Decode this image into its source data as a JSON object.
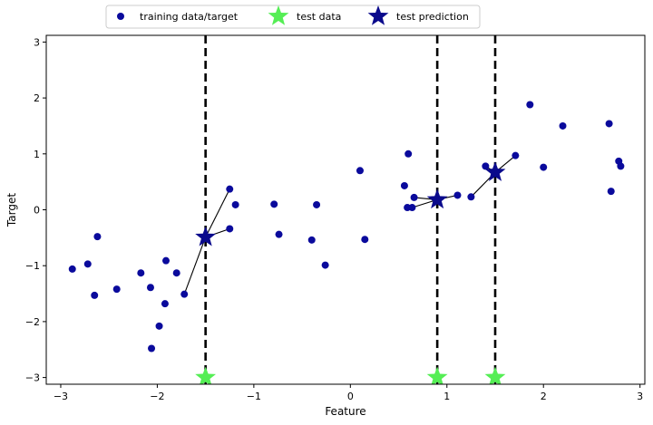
{
  "chart_data": {
    "type": "scatter",
    "xlabel": "Feature",
    "ylabel": "Target",
    "xlim": [
      -3.15,
      3.05
    ],
    "ylim": [
      -3.12,
      3.12
    ],
    "xticks": [
      -3,
      -2,
      -1,
      0,
      1,
      2,
      3
    ],
    "yticks": [
      -3,
      -2,
      -1,
      0,
      1,
      2,
      3
    ],
    "xtick_labels": [
      "−3",
      "−2",
      "−1",
      "0",
      "1",
      "2",
      "3"
    ],
    "ytick_labels": [
      "−3",
      "−2",
      "−1",
      "0",
      "1",
      "2",
      "3"
    ],
    "grid": false,
    "legend": {
      "placement": "top-center",
      "entries": [
        "training data/target",
        "test data",
        "test prediction"
      ]
    },
    "colors": {
      "training": "#0a0a9c",
      "test_data": "#55ee55",
      "test_prediction": "#0a0a8c",
      "lines": "#000000"
    },
    "series": [
      {
        "name": "training data/target",
        "marker": "circle",
        "points": [
          [
            -2.88,
            -1.06
          ],
          [
            -2.72,
            -0.97
          ],
          [
            -2.65,
            -1.53
          ],
          [
            -2.62,
            -0.48
          ],
          [
            -2.42,
            -1.42
          ],
          [
            -2.17,
            -1.13
          ],
          [
            -2.07,
            -1.39
          ],
          [
            -2.06,
            -2.48
          ],
          [
            -1.98,
            -2.08
          ],
          [
            -1.92,
            -1.68
          ],
          [
            -1.91,
            -0.91
          ],
          [
            -1.8,
            -1.13
          ],
          [
            -1.72,
            -1.51
          ],
          [
            -1.25,
            -0.34
          ],
          [
            -1.25,
            0.37
          ],
          [
            -1.19,
            0.09
          ],
          [
            -0.79,
            0.1
          ],
          [
            -0.74,
            -0.44
          ],
          [
            -0.4,
            -0.54
          ],
          [
            -0.35,
            0.09
          ],
          [
            -0.26,
            -0.99
          ],
          [
            0.1,
            0.7
          ],
          [
            0.15,
            -0.53
          ],
          [
            0.56,
            0.43
          ],
          [
            0.59,
            0.04
          ],
          [
            0.6,
            1.0
          ],
          [
            0.66,
            0.22
          ],
          [
            0.64,
            0.04
          ],
          [
            1.11,
            0.26
          ],
          [
            1.25,
            0.23
          ],
          [
            1.4,
            0.78
          ],
          [
            1.71,
            0.97
          ],
          [
            1.86,
            1.88
          ],
          [
            2.0,
            0.76
          ],
          [
            2.2,
            1.5
          ],
          [
            2.68,
            1.54
          ],
          [
            2.7,
            0.33
          ],
          [
            2.78,
            0.87
          ],
          [
            2.8,
            0.78
          ]
        ]
      },
      {
        "name": "test data",
        "marker": "star",
        "points": [
          [
            -1.5,
            -3.0
          ],
          [
            0.9,
            -3.0
          ],
          [
            1.5,
            -3.0
          ]
        ]
      },
      {
        "name": "test prediction",
        "marker": "star",
        "points": [
          [
            -1.5,
            -0.49
          ],
          [
            0.9,
            0.18
          ],
          [
            1.5,
            0.67
          ]
        ]
      }
    ],
    "vlines_x": [
      -1.5,
      0.9,
      1.5
    ],
    "neighbor_links": [
      {
        "from": [
          -1.5,
          -0.49
        ],
        "to": [
          [
            -1.72,
            -1.51
          ],
          [
            -1.25,
            -0.34
          ],
          [
            -1.25,
            0.37
          ]
        ]
      },
      {
        "from": [
          0.9,
          0.18
        ],
        "to": [
          [
            0.66,
            0.22
          ],
          [
            0.64,
            0.04
          ],
          [
            1.11,
            0.26
          ]
        ]
      },
      {
        "from": [
          1.5,
          0.67
        ],
        "to": [
          [
            1.25,
            0.23
          ],
          [
            1.4,
            0.78
          ],
          [
            1.71,
            0.97
          ]
        ]
      }
    ]
  }
}
